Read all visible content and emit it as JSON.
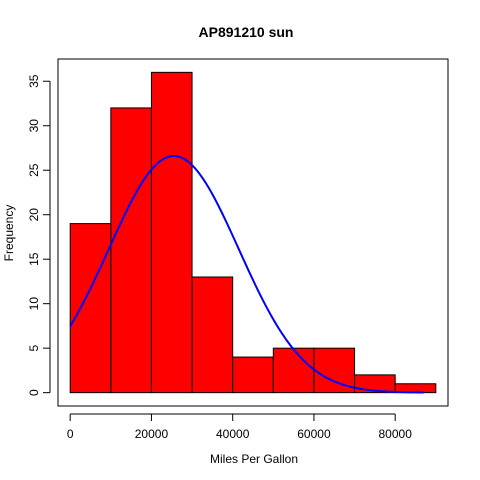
{
  "chart_data": {
    "type": "bar",
    "title": "AP891210 sun",
    "xlabel": "Miles Per Gallon",
    "ylabel": "Frequency",
    "bins": [
      {
        "from": 0,
        "to": 10000,
        "value": 19
      },
      {
        "from": 10000,
        "to": 20000,
        "value": 32
      },
      {
        "from": 20000,
        "to": 30000,
        "value": 36
      },
      {
        "from": 30000,
        "to": 40000,
        "value": 13
      },
      {
        "from": 40000,
        "to": 50000,
        "value": 4
      },
      {
        "from": 50000,
        "to": 60000,
        "value": 5
      },
      {
        "from": 60000,
        "to": 70000,
        "value": 5
      },
      {
        "from": 70000,
        "to": 80000,
        "value": 2
      },
      {
        "from": 80000,
        "to": 90000,
        "value": 1
      }
    ],
    "normal_curve": {
      "mean": 25500,
      "sd": 16000,
      "peak_frequency": 26.6,
      "x_range": [
        0,
        87000
      ]
    },
    "xlim": [
      -3000,
      93000
    ],
    "ylim": [
      -1.5,
      37.5
    ],
    "x_ticks": [
      {
        "value": 0,
        "label": "0"
      },
      {
        "value": 20000,
        "label": "20000"
      },
      {
        "value": 40000,
        "label": "40000"
      },
      {
        "value": 60000,
        "label": "60000"
      },
      {
        "value": 80000,
        "label": "80000"
      }
    ],
    "y_ticks": [
      {
        "value": 0,
        "label": "0"
      },
      {
        "value": 5,
        "label": "5"
      },
      {
        "value": 10,
        "label": "10"
      },
      {
        "value": 15,
        "label": "15"
      },
      {
        "value": 20,
        "label": "20"
      },
      {
        "value": 25,
        "label": "25"
      },
      {
        "value": 30,
        "label": "30"
      },
      {
        "value": 35,
        "label": "35"
      }
    ],
    "bar_color": "#ff0000",
    "bar_border_color": "#000000",
    "curve_color": "#0000ff",
    "grid": false
  }
}
